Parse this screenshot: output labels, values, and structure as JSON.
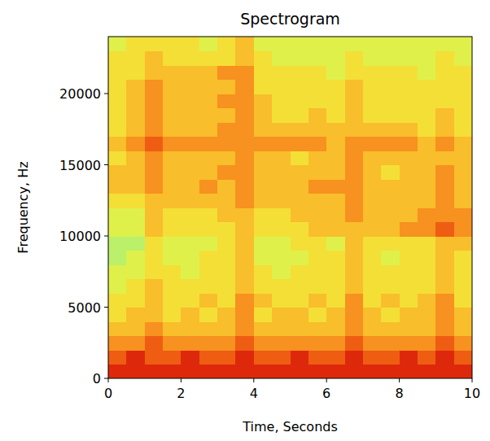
{
  "chart_data": {
    "type": "heatmap",
    "title": "Spectrogram",
    "x_label": "Time, Seconds",
    "y_label": "Frequency, Hz",
    "xlim": [
      0,
      10
    ],
    "ylim": [
      0,
      24000
    ],
    "xticks": [
      0,
      2,
      4,
      6,
      8,
      10
    ],
    "yticks": [
      0,
      5000,
      10000,
      15000,
      20000
    ],
    "zlim": [
      0,
      9
    ],
    "cells": [
      [
        9,
        9,
        9,
        9,
        9,
        9,
        9,
        9,
        9,
        9,
        9,
        9,
        9,
        9,
        9,
        9,
        9,
        9,
        9,
        9
      ],
      [
        8,
        9,
        8,
        8,
        9,
        8,
        8,
        9,
        8,
        8,
        9,
        8,
        8,
        9,
        8,
        8,
        9,
        8,
        9,
        8
      ],
      [
        7,
        7,
        8,
        7,
        7,
        7,
        7,
        8,
        7,
        7,
        7,
        7,
        7,
        8,
        7,
        7,
        7,
        7,
        8,
        7
      ],
      [
        6,
        6,
        7,
        6,
        6,
        6,
        6,
        7,
        6,
        6,
        6,
        6,
        6,
        7,
        6,
        6,
        6,
        6,
        7,
        6
      ],
      [
        5,
        6,
        6,
        5,
        6,
        5,
        6,
        7,
        5,
        6,
        6,
        5,
        6,
        7,
        6,
        5,
        6,
        6,
        7,
        6
      ],
      [
        5,
        5,
        6,
        5,
        5,
        6,
        5,
        7,
        6,
        5,
        5,
        6,
        5,
        7,
        5,
        6,
        5,
        6,
        7,
        5
      ],
      [
        4,
        5,
        6,
        5,
        5,
        5,
        5,
        6,
        5,
        5,
        5,
        5,
        5,
        6,
        5,
        5,
        5,
        5,
        6,
        5
      ],
      [
        4,
        4,
        5,
        5,
        4,
        5,
        5,
        6,
        5,
        4,
        5,
        5,
        5,
        6,
        5,
        5,
        5,
        5,
        6,
        5
      ],
      [
        3,
        4,
        5,
        4,
        4,
        5,
        5,
        6,
        4,
        4,
        4,
        5,
        5,
        6,
        5,
        4,
        5,
        5,
        6,
        5
      ],
      [
        3,
        3,
        5,
        4,
        4,
        4,
        5,
        6,
        4,
        4,
        5,
        5,
        4,
        6,
        5,
        5,
        5,
        5,
        6,
        6
      ],
      [
        4,
        4,
        6,
        5,
        5,
        5,
        5,
        6,
        5,
        5,
        5,
        6,
        6,
        6,
        6,
        6,
        7,
        7,
        8,
        7
      ],
      [
        4,
        4,
        6,
        5,
        5,
        5,
        6,
        6,
        5,
        5,
        6,
        6,
        6,
        7,
        6,
        6,
        6,
        7,
        7,
        7
      ],
      [
        5,
        5,
        6,
        6,
        6,
        6,
        6,
        7,
        6,
        6,
        6,
        6,
        6,
        7,
        6,
        6,
        6,
        6,
        7,
        6
      ],
      [
        6,
        6,
        7,
        6,
        6,
        7,
        6,
        7,
        6,
        6,
        6,
        7,
        7,
        7,
        6,
        6,
        6,
        6,
        7,
        6
      ],
      [
        6,
        6,
        7,
        6,
        6,
        6,
        7,
        7,
        6,
        6,
        6,
        6,
        6,
        7,
        6,
        5,
        6,
        6,
        7,
        6
      ],
      [
        5,
        6,
        7,
        6,
        6,
        6,
        6,
        7,
        6,
        6,
        5,
        6,
        6,
        7,
        6,
        6,
        6,
        6,
        6,
        6
      ],
      [
        6,
        7,
        8,
        7,
        7,
        7,
        7,
        7,
        7,
        7,
        7,
        7,
        6,
        7,
        7,
        7,
        7,
        6,
        7,
        6
      ],
      [
        5,
        6,
        7,
        6,
        6,
        6,
        7,
        7,
        6,
        6,
        6,
        6,
        6,
        6,
        6,
        6,
        6,
        5,
        6,
        5
      ],
      [
        5,
        6,
        7,
        6,
        6,
        6,
        6,
        7,
        6,
        5,
        5,
        6,
        5,
        6,
        5,
        5,
        5,
        5,
        6,
        5
      ],
      [
        5,
        6,
        7,
        6,
        6,
        6,
        7,
        7,
        6,
        5,
        5,
        5,
        5,
        6,
        5,
        5,
        5,
        5,
        5,
        5
      ],
      [
        5,
        6,
        7,
        6,
        6,
        6,
        6,
        7,
        5,
        5,
        5,
        5,
        5,
        6,
        5,
        5,
        5,
        5,
        5,
        5
      ],
      [
        5,
        5,
        6,
        6,
        6,
        6,
        7,
        7,
        5,
        5,
        5,
        5,
        4,
        5,
        5,
        5,
        5,
        4,
        5,
        5
      ],
      [
        5,
        5,
        6,
        5,
        5,
        5,
        5,
        6,
        5,
        4,
        4,
        4,
        4,
        5,
        4,
        4,
        4,
        4,
        5,
        4
      ],
      [
        4,
        5,
        5,
        5,
        5,
        4,
        5,
        6,
        4,
        4,
        4,
        4,
        4,
        4,
        4,
        4,
        4,
        4,
        4,
        4
      ]
    ]
  }
}
